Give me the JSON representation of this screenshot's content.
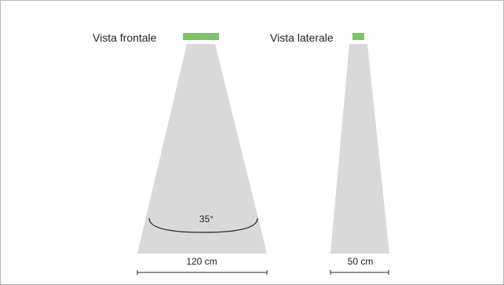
{
  "front_view": {
    "label": "Vista frontale",
    "angle_label": "35°",
    "width_label": "120 cm"
  },
  "side_view": {
    "label": "Vista laterale",
    "width_label": "50 cm"
  },
  "colors": {
    "sensor": "#7dc36a",
    "beam": "#d9d9d9",
    "line": "#2a2a2a",
    "border": "#b7b7b7"
  }
}
